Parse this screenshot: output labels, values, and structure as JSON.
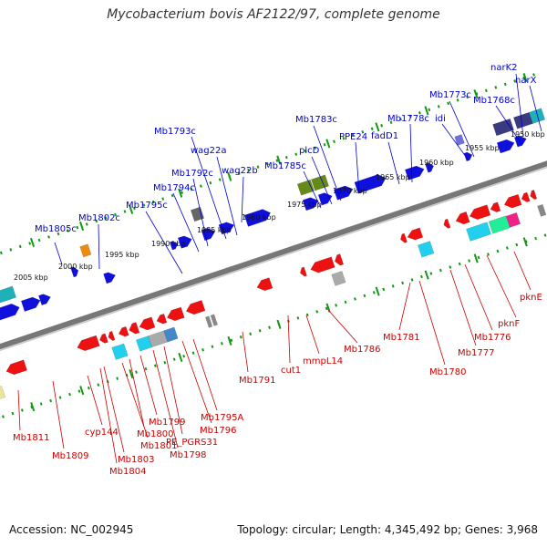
{
  "header": {
    "title": "Mycobacterium bovis AF2122/97, complete genome"
  },
  "footer": {
    "accession": "Accession: NC_002945",
    "stats": "Topology: circular; Length: 4,345,492 bp; Genes: 3,968"
  },
  "colors": {
    "forward_label": "#0000cc",
    "reverse_label": "#cc0000",
    "tick": "#119911",
    "backbone": "#777777"
  },
  "scale_labels": [
    "2005 kbp",
    "2000 kbp",
    "1995 kbp",
    "1990 kbp",
    "1985 kbp",
    "1980 kbp",
    "1975 kbp",
    "1970 kbp",
    "1965 kbp",
    "1960 kbp",
    "1955 kbp",
    "1950 kbp"
  ],
  "forward_genes": [
    "Mb1805c",
    "Mb1802c",
    "Mb1795c",
    "Mb1794c",
    "Mb1792c",
    "Mb1793c",
    "wag22a",
    "wag22b",
    "Mb1785c",
    "plcD",
    "Mb1783c",
    "PPE24",
    "fadD1",
    "Mb1778c",
    "idi",
    "Mb1773c",
    "Mb1768c",
    "narK2",
    "narX"
  ],
  "reverse_genes": [
    "Mb1811",
    "Mb1809",
    "cyp144",
    "Mb1803",
    "Mb1804",
    "Mb1801",
    "Mb1800",
    "Mb1799",
    "Mb1798",
    "PE_PGRS31",
    "Mb1796",
    "Mb1795A",
    "Mb1791",
    "cut1",
    "mmpL14",
    "Mb1786",
    "Mb1781",
    "Mb1780",
    "Mb1777",
    "Mb1776",
    "pknF",
    "pknE"
  ]
}
